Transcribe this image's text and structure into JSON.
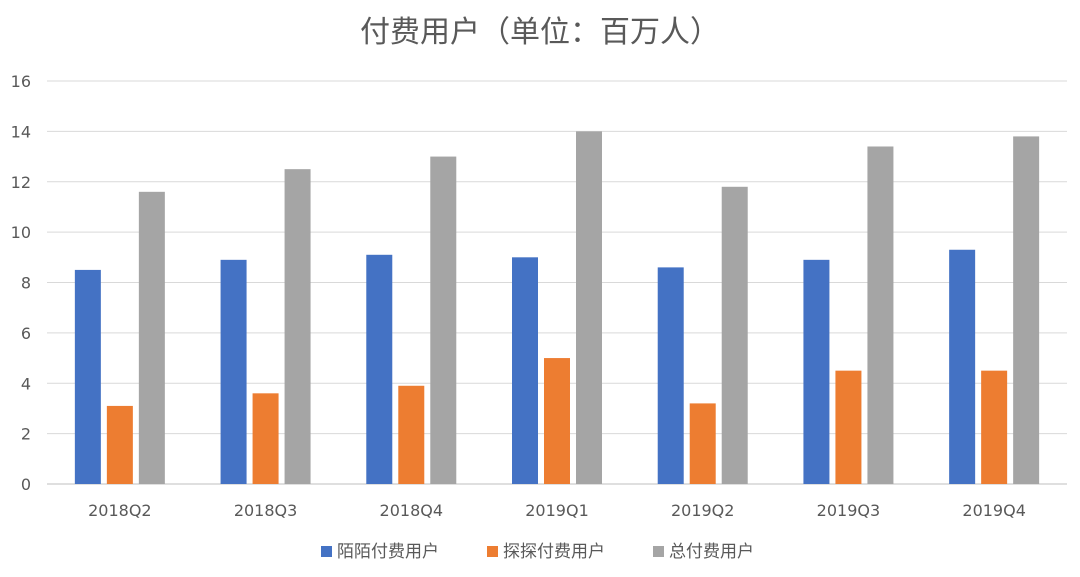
{
  "chart_data": {
    "type": "bar",
    "title": "付费用户（单位：百万人）",
    "xlabel": "",
    "ylabel": "",
    "ylim": [
      0,
      16
    ],
    "yticks": [
      0,
      2,
      4,
      6,
      8,
      10,
      12,
      14,
      16
    ],
    "grid": true,
    "legend_position": "bottom",
    "categories": [
      "2018Q2",
      "2018Q3",
      "2018Q4",
      "2019Q1",
      "2019Q2",
      "2019Q3",
      "2019Q4"
    ],
    "series": [
      {
        "name": "陌陌付费用户",
        "color": "#4472C4",
        "values": [
          8.5,
          8.9,
          9.1,
          9.0,
          8.6,
          8.9,
          9.3
        ]
      },
      {
        "name": "探探付费用户",
        "color": "#ED7D31",
        "values": [
          3.1,
          3.6,
          3.9,
          5.0,
          3.2,
          4.5,
          4.5
        ]
      },
      {
        "name": "总付费用户",
        "color": "#A5A5A5",
        "values": [
          11.6,
          12.5,
          13.0,
          14.0,
          11.8,
          13.4,
          13.8
        ]
      }
    ]
  }
}
